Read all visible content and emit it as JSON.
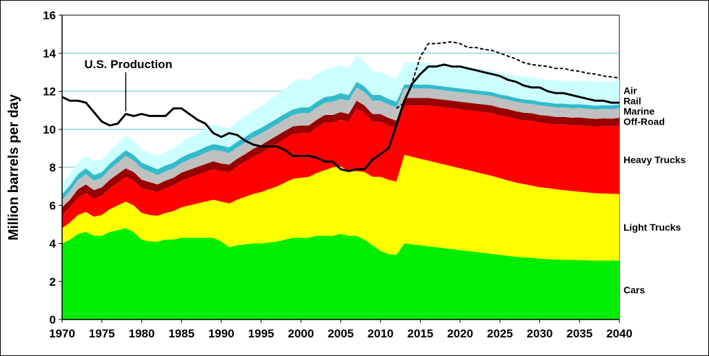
{
  "chart_data": {
    "type": "area",
    "ylabel": "Million barrels per day",
    "ylim": [
      0,
      16
    ],
    "xlim": [
      1970,
      2040
    ],
    "yticks": [
      "0",
      "2",
      "4",
      "6",
      "8",
      "10",
      "12",
      "14",
      "16"
    ],
    "xticks": [
      "1970",
      "1975",
      "1980",
      "1985",
      "1990",
      "1995",
      "2000",
      "2005",
      "2010",
      "2015",
      "2020",
      "2025",
      "2030",
      "2035",
      "2040"
    ],
    "grid": true,
    "colors": {
      "plot_background": "#ffffff",
      "grid": "#8fd0d8"
    },
    "x": [
      1970,
      1971,
      1972,
      1973,
      1974,
      1975,
      1976,
      1977,
      1978,
      1979,
      1980,
      1981,
      1982,
      1983,
      1984,
      1985,
      1986,
      1987,
      1988,
      1989,
      1990,
      1991,
      1992,
      1993,
      1994,
      1995,
      1996,
      1997,
      1998,
      1999,
      2000,
      2001,
      2002,
      2003,
      2004,
      2005,
      2006,
      2007,
      2008,
      2009,
      2010,
      2011,
      2012,
      2013,
      2014,
      2015,
      2016,
      2017,
      2018,
      2019,
      2020,
      2021,
      2022,
      2023,
      2024,
      2025,
      2026,
      2027,
      2028,
      2029,
      2030,
      2031,
      2032,
      2033,
      2034,
      2035,
      2036,
      2037,
      2038,
      2039,
      2040
    ],
    "series": [
      {
        "name": "Cars",
        "color": "#00ee00",
        "values": [
          4.0,
          4.2,
          4.5,
          4.6,
          4.4,
          4.4,
          4.6,
          4.7,
          4.8,
          4.6,
          4.2,
          4.1,
          4.1,
          4.2,
          4.2,
          4.3,
          4.3,
          4.3,
          4.3,
          4.3,
          4.1,
          3.8,
          3.9,
          3.95,
          4.0,
          4.0,
          4.05,
          4.1,
          4.2,
          4.3,
          4.3,
          4.3,
          4.4,
          4.4,
          4.4,
          4.5,
          4.4,
          4.4,
          4.2,
          3.9,
          3.6,
          3.45,
          3.4,
          4.0,
          3.95,
          3.9,
          3.85,
          3.8,
          3.75,
          3.7,
          3.65,
          3.6,
          3.55,
          3.5,
          3.45,
          3.4,
          3.35,
          3.3,
          3.27,
          3.24,
          3.2,
          3.18,
          3.15,
          3.14,
          3.13,
          3.12,
          3.11,
          3.1,
          3.1,
          3.1,
          3.1
        ]
      },
      {
        "name": "Light Trucks",
        "color": "#ffff00",
        "values": [
          0.8,
          0.9,
          1.0,
          1.05,
          1.0,
          1.1,
          1.2,
          1.3,
          1.4,
          1.4,
          1.4,
          1.4,
          1.35,
          1.4,
          1.5,
          1.6,
          1.7,
          1.8,
          1.9,
          2.0,
          2.1,
          2.3,
          2.4,
          2.5,
          2.6,
          2.7,
          2.8,
          2.9,
          3.0,
          3.1,
          3.15,
          3.2,
          3.3,
          3.45,
          3.6,
          3.55,
          3.4,
          3.4,
          3.55,
          3.6,
          3.9,
          3.9,
          3.85,
          4.65,
          4.6,
          4.55,
          4.5,
          4.45,
          4.4,
          4.35,
          4.3,
          4.25,
          4.2,
          4.15,
          4.1,
          4.03,
          3.96,
          3.9,
          3.85,
          3.8,
          3.75,
          3.73,
          3.7,
          3.66,
          3.63,
          3.6,
          3.57,
          3.54,
          3.52,
          3.51,
          3.5
        ]
      },
      {
        "name": "Heavy Trucks",
        "color": "#ff0000",
        "values": [
          0.7,
          0.8,
          0.9,
          1.0,
          0.95,
          1.0,
          1.1,
          1.2,
          1.3,
          1.3,
          1.3,
          1.3,
          1.25,
          1.3,
          1.35,
          1.4,
          1.45,
          1.5,
          1.55,
          1.6,
          1.6,
          1.65,
          1.75,
          1.85,
          1.95,
          2.05,
          2.15,
          2.25,
          2.3,
          2.35,
          2.35,
          2.3,
          2.4,
          2.5,
          2.35,
          2.45,
          2.6,
          3.3,
          3.1,
          2.9,
          2.9,
          2.85,
          2.8,
          2.6,
          2.7,
          2.8,
          2.9,
          2.95,
          3.0,
          3.05,
          3.1,
          3.15,
          3.2,
          3.25,
          3.3,
          3.3,
          3.35,
          3.35,
          3.35,
          3.4,
          3.4,
          3.4,
          3.4,
          3.45,
          3.45,
          3.5,
          3.5,
          3.5,
          3.55,
          3.55,
          3.6
        ]
      },
      {
        "name": "Off-Road",
        "color": "#990000",
        "values": [
          0.4,
          0.4,
          0.45,
          0.45,
          0.45,
          0.45,
          0.45,
          0.45,
          0.45,
          0.45,
          0.45,
          0.42,
          0.4,
          0.4,
          0.4,
          0.42,
          0.42,
          0.42,
          0.42,
          0.42,
          0.4,
          0.4,
          0.4,
          0.4,
          0.42,
          0.42,
          0.42,
          0.42,
          0.42,
          0.4,
          0.4,
          0.4,
          0.4,
          0.4,
          0.4,
          0.4,
          0.4,
          0.4,
          0.4,
          0.4,
          0.4,
          0.4,
          0.4,
          0.4,
          0.4,
          0.4,
          0.4,
          0.4,
          0.4,
          0.4,
          0.4,
          0.4,
          0.4,
          0.4,
          0.4,
          0.4,
          0.4,
          0.4,
          0.4,
          0.4,
          0.4,
          0.4,
          0.4,
          0.4,
          0.4,
          0.4,
          0.4,
          0.4,
          0.4,
          0.4,
          0.4
        ]
      },
      {
        "name": "Marine",
        "color": "#c0c0c0",
        "values": [
          0.4,
          0.45,
          0.5,
          0.55,
          0.5,
          0.5,
          0.55,
          0.6,
          0.65,
          0.6,
          0.6,
          0.55,
          0.5,
          0.5,
          0.5,
          0.5,
          0.55,
          0.55,
          0.6,
          0.6,
          0.65,
          0.6,
          0.6,
          0.6,
          0.6,
          0.6,
          0.6,
          0.6,
          0.6,
          0.6,
          0.65,
          0.65,
          0.65,
          0.65,
          0.7,
          0.7,
          0.7,
          0.7,
          0.7,
          0.7,
          0.7,
          0.7,
          0.7,
          0.5,
          0.5,
          0.5,
          0.5,
          0.5,
          0.5,
          0.5,
          0.5,
          0.5,
          0.5,
          0.5,
          0.5,
          0.5,
          0.5,
          0.5,
          0.5,
          0.5,
          0.5,
          0.5,
          0.5,
          0.5,
          0.5,
          0.5,
          0.5,
          0.5,
          0.5,
          0.5,
          0.5
        ]
      },
      {
        "name": "Rail",
        "color": "#33bbcc",
        "values": [
          0.3,
          0.3,
          0.3,
          0.3,
          0.3,
          0.3,
          0.3,
          0.3,
          0.3,
          0.3,
          0.3,
          0.3,
          0.3,
          0.3,
          0.3,
          0.3,
          0.3,
          0.3,
          0.3,
          0.3,
          0.3,
          0.3,
          0.3,
          0.3,
          0.3,
          0.3,
          0.3,
          0.3,
          0.3,
          0.3,
          0.3,
          0.3,
          0.3,
          0.3,
          0.3,
          0.3,
          0.3,
          0.3,
          0.3,
          0.3,
          0.3,
          0.3,
          0.3,
          0.2,
          0.2,
          0.2,
          0.2,
          0.2,
          0.2,
          0.2,
          0.2,
          0.2,
          0.2,
          0.2,
          0.2,
          0.2,
          0.2,
          0.2,
          0.2,
          0.2,
          0.2,
          0.2,
          0.2,
          0.2,
          0.2,
          0.2,
          0.2,
          0.2,
          0.2,
          0.2,
          0.2
        ]
      },
      {
        "name": "Air",
        "color": "#ccffff",
        "values": [
          0.6,
          0.6,
          0.6,
          0.65,
          0.7,
          0.65,
          0.65,
          0.7,
          0.75,
          0.75,
          0.7,
          0.7,
          0.7,
          0.7,
          0.75,
          0.8,
          0.85,
          0.9,
          0.95,
          1.0,
          1.0,
          1.0,
          1.05,
          1.1,
          1.1,
          1.15,
          1.2,
          1.25,
          1.3,
          1.45,
          1.5,
          1.45,
          1.45,
          1.45,
          1.5,
          1.5,
          1.4,
          1.4,
          1.3,
          1.2,
          1.2,
          1.2,
          1.2,
          1.15,
          1.15,
          1.15,
          1.15,
          1.15,
          1.15,
          1.15,
          1.15,
          1.15,
          1.15,
          1.15,
          1.15,
          1.15,
          1.15,
          1.15,
          1.2,
          1.2,
          1.2,
          1.2,
          1.2,
          1.2,
          1.2,
          1.25,
          1.25,
          1.25,
          1.25,
          1.25,
          1.3
        ]
      }
    ],
    "lines": [
      {
        "name": "U.S. Production",
        "style": "solid",
        "color": "#000000",
        "values": [
          11.7,
          11.5,
          11.5,
          11.4,
          10.9,
          10.4,
          10.2,
          10.3,
          10.8,
          10.7,
          10.8,
          10.7,
          10.7,
          10.7,
          11.1,
          11.1,
          10.8,
          10.5,
          10.3,
          9.8,
          9.6,
          9.8,
          9.7,
          9.4,
          9.2,
          9.1,
          9.1,
          9.1,
          8.9,
          8.6,
          8.6,
          8.6,
          8.5,
          8.3,
          8.3,
          7.9,
          7.8,
          7.9,
          7.9,
          8.4,
          8.7,
          9.0,
          10.2,
          11.5,
          12.4,
          12.9,
          13.3,
          13.3,
          13.4,
          13.3,
          13.3,
          13.2,
          13.1,
          13.0,
          12.9,
          12.8,
          12.6,
          12.5,
          12.3,
          12.2,
          12.2,
          12.0,
          11.9,
          11.9,
          11.8,
          11.7,
          11.6,
          11.5,
          11.5,
          11.4,
          11.4
        ]
      },
      {
        "style": "dashed",
        "color": "#000000",
        "x": [
          2012,
          2013,
          2014,
          2015,
          2016,
          2017,
          2018,
          2019,
          2020,
          2021,
          2022,
          2023,
          2024,
          2025,
          2026,
          2027,
          2028,
          2029,
          2030,
          2031,
          2032,
          2033,
          2034,
          2035,
          2036,
          2037,
          2038,
          2039,
          2040
        ],
        "values": [
          11.1,
          11.4,
          12.5,
          13.8,
          14.5,
          14.5,
          14.55,
          14.6,
          14.5,
          14.3,
          14.3,
          14.2,
          14.15,
          14.0,
          13.85,
          13.7,
          13.5,
          13.4,
          13.35,
          13.3,
          13.2,
          13.2,
          13.1,
          13.05,
          12.95,
          12.9,
          12.8,
          12.75,
          12.7
        ]
      }
    ],
    "annotations": [
      {
        "text": "U.S. Production",
        "x": 1978,
        "y": 10.8
      }
    ]
  }
}
